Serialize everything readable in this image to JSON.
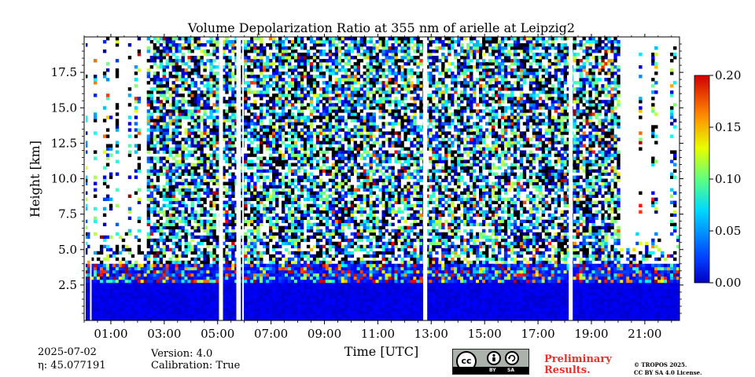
{
  "chart_data": {
    "type": "heatmap",
    "title": "Volume Depolarization Ratio at 355 nm of arielle at Leipzig2",
    "xlabel": "Time [UTC]",
    "ylabel": "Height [km]",
    "x_tick_labels": [
      "01:00",
      "03:00",
      "05:00",
      "07:00",
      "09:00",
      "11:00",
      "13:00",
      "15:00",
      "17:00",
      "19:00",
      "21:00"
    ],
    "x_ticks_hours": [
      1,
      3,
      5,
      7,
      9,
      11,
      13,
      15,
      17,
      19,
      21
    ],
    "xlim_hours": [
      0.0,
      22.3
    ],
    "y_tick_labels": [
      "2.5",
      "5.0",
      "7.5",
      "10.0",
      "12.5",
      "15.0",
      "17.5"
    ],
    "y_ticks_km": [
      2.5,
      5.0,
      7.5,
      10.0,
      12.5,
      15.0,
      17.5
    ],
    "ylim_km": [
      0.0,
      20.0
    ],
    "colorbar": {
      "colormap": "jet",
      "range": [
        0.0,
        0.2
      ],
      "tick_labels": [
        "0.00",
        "0.05",
        "0.10",
        "0.15",
        "0.20"
      ],
      "ticks": [
        0.0,
        0.05,
        0.1,
        0.15,
        0.2
      ]
    },
    "data_gaps_hours": [
      [
        0.0,
        0.05
      ],
      [
        0.22,
        0.27
      ],
      [
        5.05,
        5.2
      ],
      [
        5.7,
        5.87
      ],
      [
        5.92,
        5.97
      ],
      [
        12.7,
        12.85
      ],
      [
        18.15,
        18.3
      ]
    ],
    "night_profile_periods_hours": [
      [
        0.0,
        2.3
      ],
      [
        20.0,
        22.3
      ]
    ],
    "boundary_layer_top_km": 2.5,
    "near_surface_ratio": 0.02,
    "upper_noise_ratio_range": [
      0.0,
      0.2
    ]
  },
  "info": {
    "date": "2025-07-02",
    "eta_label": "η: 45.077191",
    "version": "Version: 4.0",
    "calibration": "Calibration: True",
    "preliminary_line1": "Preliminary",
    "preliminary_line2": "Results.",
    "copyright_line1": "© TROPOS 2025.",
    "copyright_line2": "CC BY SA 4.0 License."
  },
  "license_badge": {
    "cc": "cc",
    "by": "BY",
    "sa": "SA",
    "icons": [
      "cc-icon",
      "attribution-person-icon",
      "share-alike-icon"
    ]
  }
}
